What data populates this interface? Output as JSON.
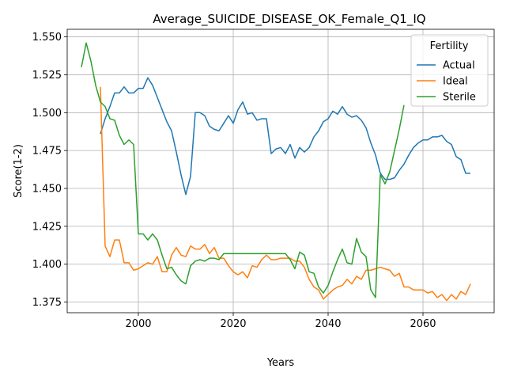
{
  "chart_data": {
    "type": "line",
    "title": "Average_SUICIDE_DISEASE_OK_Female_Q1_IQ",
    "xlabel": "Years",
    "ylabel": "Score(1-2)",
    "xlim": [
      1985,
      2075
    ],
    "ylim": [
      1.368,
      1.555
    ],
    "xticks": [
      2000,
      2020,
      2040,
      2060
    ],
    "yticks": [
      1.375,
      1.4,
      1.425,
      1.45,
      1.475,
      1.5,
      1.525,
      1.55
    ],
    "grid": true,
    "legend": {
      "title": "Fertility",
      "placement": "top-right"
    },
    "series": [
      {
        "name": "Actual",
        "color": "#1f77b4",
        "x": [
          1992,
          1993,
          1994,
          1995,
          1996,
          1997,
          1998,
          1999,
          2000,
          2001,
          2002,
          2003,
          2004,
          2005,
          2006,
          2007,
          2008,
          2009,
          2010,
          2011,
          2012,
          2013,
          2014,
          2015,
          2016,
          2017,
          2018,
          2019,
          2020,
          2021,
          2022,
          2023,
          2024,
          2025,
          2026,
          2027,
          2028,
          2029,
          2030,
          2031,
          2032,
          2033,
          2034,
          2035,
          2036,
          2037,
          2038,
          2039,
          2040,
          2041,
          2042,
          2043,
          2044,
          2045,
          2046,
          2047,
          2048,
          2049,
          2050,
          2051,
          2052,
          2053,
          2054,
          2055,
          2056,
          2057,
          2058,
          2059,
          2060,
          2061,
          2062,
          2063,
          2064,
          2065,
          2066,
          2067,
          2068,
          2069,
          2070
        ],
        "y": [
          1.486,
          1.496,
          1.504,
          1.513,
          1.513,
          1.517,
          1.513,
          1.513,
          1.516,
          1.516,
          1.523,
          1.518,
          1.51,
          1.502,
          1.494,
          1.488,
          1.474,
          1.459,
          1.446,
          1.458,
          1.5,
          1.5,
          1.498,
          1.491,
          1.489,
          1.488,
          1.493,
          1.498,
          1.493,
          1.502,
          1.507,
          1.499,
          1.5,
          1.495,
          1.496,
          1.496,
          1.473,
          1.476,
          1.477,
          1.473,
          1.479,
          1.47,
          1.477,
          1.474,
          1.477,
          1.484,
          1.488,
          1.494,
          1.496,
          1.501,
          1.499,
          1.504,
          1.499,
          1.497,
          1.498,
          1.495,
          1.49,
          1.48,
          1.472,
          1.46,
          1.456,
          1.456,
          1.457,
          1.462,
          1.466,
          1.472,
          1.477,
          1.48,
          1.482,
          1.482,
          1.484,
          1.484,
          1.485,
          1.481,
          1.479,
          1.471,
          1.469,
          1.46,
          1.46
        ]
      },
      {
        "name": "Ideal",
        "color": "#ff7f0e",
        "x": [
          1992,
          1993,
          1994,
          1995,
          1996,
          1997,
          1998,
          1999,
          2000,
          2001,
          2002,
          2003,
          2004,
          2005,
          2006,
          2007,
          2008,
          2009,
          2010,
          2011,
          2012,
          2013,
          2014,
          2015,
          2016,
          2017,
          2018,
          2019,
          2020,
          2021,
          2022,
          2023,
          2024,
          2025,
          2026,
          2027,
          2028,
          2029,
          2030,
          2031,
          2032,
          2033,
          2034,
          2035,
          2036,
          2037,
          2038,
          2039,
          2040,
          2041,
          2042,
          2043,
          2044,
          2045,
          2046,
          2047,
          2048,
          2049,
          2050,
          2051,
          2052,
          2053,
          2054,
          2055,
          2056,
          2057,
          2058,
          2059,
          2060,
          2061,
          2062,
          2063,
          2064,
          2065,
          2066,
          2067,
          2068,
          2069,
          2070
        ],
        "y": [
          1.517,
          1.412,
          1.405,
          1.416,
          1.416,
          1.401,
          1.401,
          1.396,
          1.397,
          1.399,
          1.401,
          1.4,
          1.405,
          1.395,
          1.395,
          1.406,
          1.411,
          1.406,
          1.405,
          1.412,
          1.41,
          1.41,
          1.413,
          1.407,
          1.411,
          1.404,
          1.404,
          1.399,
          1.395,
          1.393,
          1.395,
          1.391,
          1.399,
          1.398,
          1.403,
          1.406,
          1.403,
          1.403,
          1.404,
          1.404,
          1.404,
          1.402,
          1.402,
          1.398,
          1.39,
          1.385,
          1.383,
          1.377,
          1.38,
          1.383,
          1.385,
          1.386,
          1.39,
          1.387,
          1.392,
          1.39,
          1.396,
          1.396,
          1.397,
          1.398,
          1.397,
          1.396,
          1.392,
          1.394,
          1.385,
          1.385,
          1.383,
          1.383,
          1.383,
          1.381,
          1.382,
          1.378,
          1.38,
          1.376,
          1.38,
          1.377,
          1.382,
          1.38,
          1.387
        ]
      },
      {
        "name": "Sterile",
        "color": "#2ca02c",
        "x": [
          1988,
          1989,
          1990,
          1991,
          1992,
          1993,
          1994,
          1995,
          1996,
          1997,
          1998,
          1999,
          2000,
          2001,
          2002,
          2003,
          2004,
          2005,
          2006,
          2007,
          2008,
          2009,
          2010,
          2011,
          2012,
          2013,
          2014,
          2015,
          2016,
          2017,
          2018,
          2020,
          2022,
          2024,
          2026,
          2028,
          2030,
          2031,
          2032,
          2033,
          2034,
          2035,
          2036,
          2037,
          2038,
          2039,
          2040,
          2041,
          2042,
          2043,
          2044,
          2045,
          2046,
          2047,
          2048,
          2049,
          2050,
          2051,
          2052,
          2053,
          2054,
          2055,
          2056
        ],
        "y": [
          1.53,
          1.546,
          1.534,
          1.518,
          1.507,
          1.504,
          1.496,
          1.495,
          1.485,
          1.479,
          1.482,
          1.479,
          1.42,
          1.42,
          1.416,
          1.42,
          1.416,
          1.406,
          1.397,
          1.398,
          1.393,
          1.389,
          1.387,
          1.399,
          1.402,
          1.403,
          1.402,
          1.404,
          1.404,
          1.403,
          1.407,
          1.407,
          1.407,
          1.407,
          1.407,
          1.407,
          1.407,
          1.407,
          1.403,
          1.397,
          1.408,
          1.406,
          1.395,
          1.394,
          1.385,
          1.381,
          1.386,
          1.395,
          1.403,
          1.41,
          1.401,
          1.4,
          1.417,
          1.408,
          1.405,
          1.383,
          1.378,
          1.459,
          1.453,
          1.461,
          1.475,
          1.489,
          1.505
        ]
      }
    ]
  }
}
